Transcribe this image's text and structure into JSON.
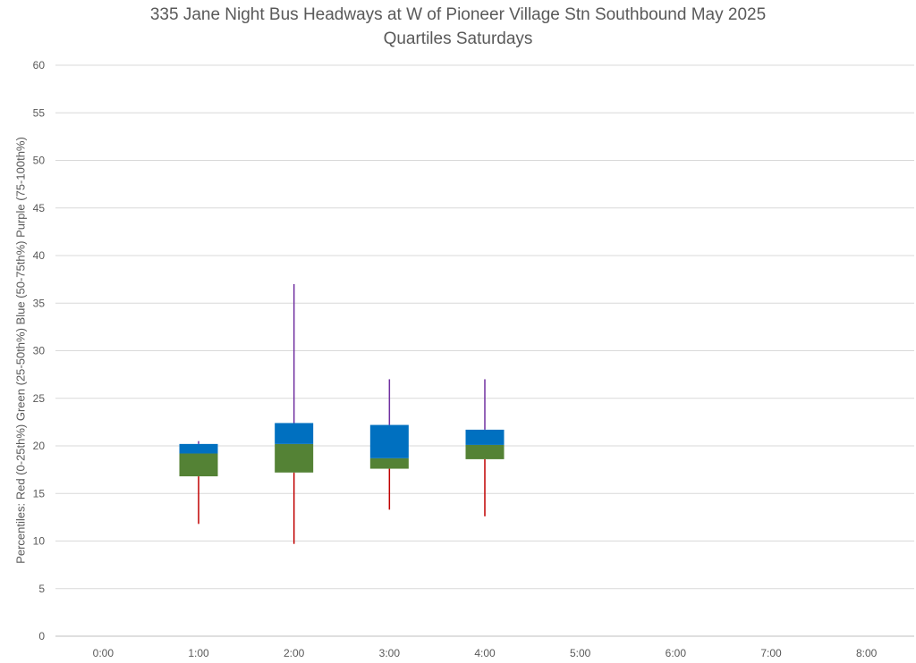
{
  "chart_data": {
    "type": "box",
    "title": "335 Jane Night Bus Headways at W of Pioneer Village Stn Southbound May 2025",
    "subtitle": "Quartiles Saturdays",
    "ylabel": "Percentiles:  Red (0-25th%)  Green (25-50th%)  Blue (50-75th%)  Purple (75-100th%)",
    "xlabel": "",
    "categories": [
      "0:00",
      "1:00",
      "2:00",
      "3:00",
      "4:00",
      "5:00",
      "6:00",
      "7:00",
      "8:00"
    ],
    "ylim": [
      0,
      60
    ],
    "yticks": [
      0,
      5,
      10,
      15,
      20,
      25,
      30,
      35,
      40,
      45,
      50,
      55,
      60
    ],
    "grid": true,
    "colors": {
      "red": "#c00000",
      "green": "#548235",
      "blue": "#0070c0",
      "purple": "#7030a0"
    },
    "boxes": [
      {
        "category": "1:00",
        "min": 11.8,
        "q1": 16.8,
        "median": 19.2,
        "q3": 20.2,
        "max": 20.5
      },
      {
        "category": "2:00",
        "min": 9.7,
        "q1": 17.2,
        "median": 20.2,
        "q3": 22.4,
        "max": 37.0
      },
      {
        "category": "3:00",
        "min": 13.3,
        "q1": 17.6,
        "median": 18.7,
        "q3": 22.2,
        "max": 27.0
      },
      {
        "category": "4:00",
        "min": 12.6,
        "q1": 18.6,
        "median": 20.1,
        "q3": 21.7,
        "max": 27.0
      }
    ]
  }
}
